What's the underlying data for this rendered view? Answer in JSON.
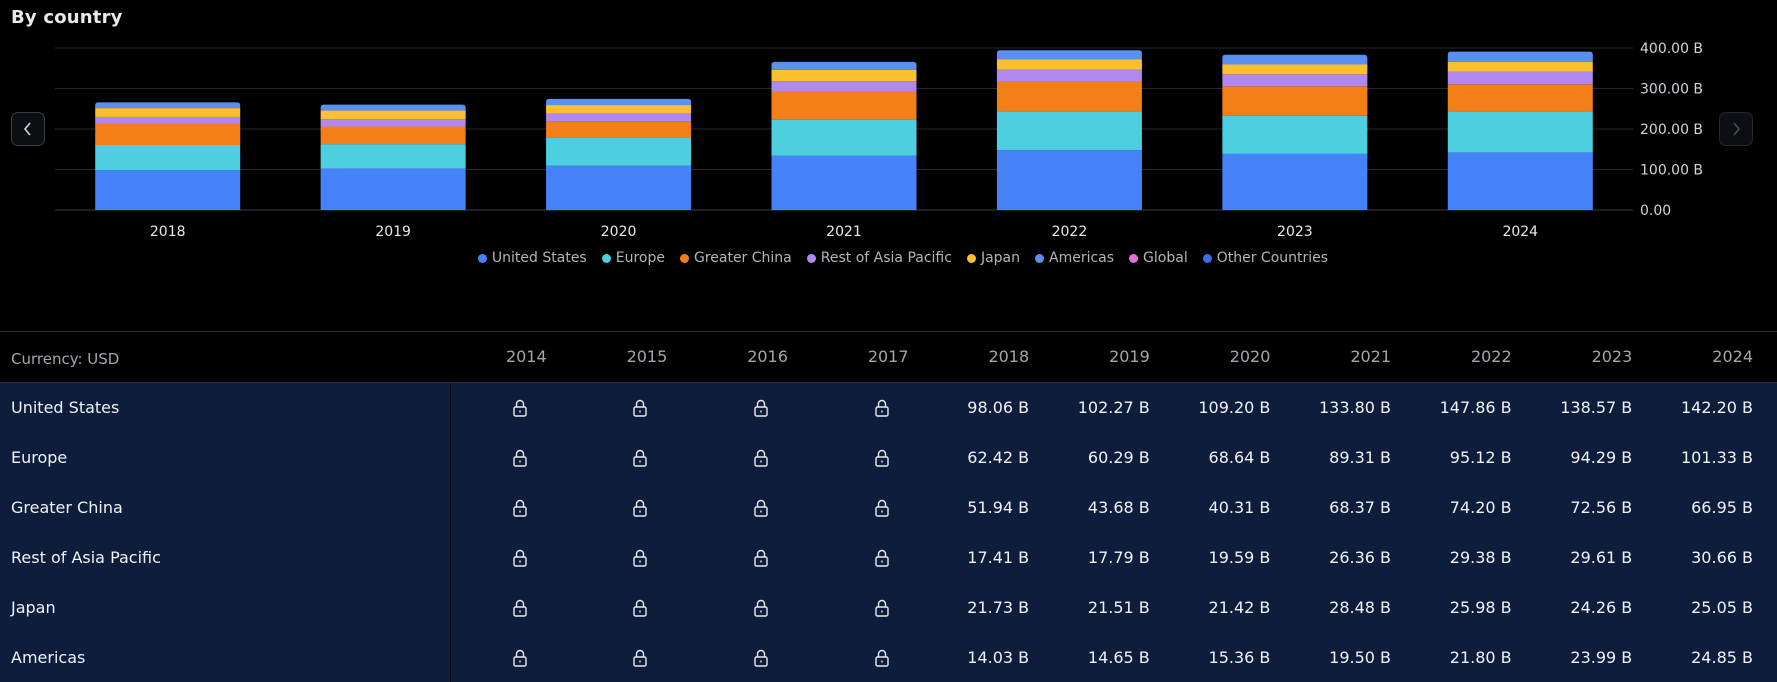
{
  "section_title": "By country",
  "chart_data": {
    "type": "bar",
    "stacked": true,
    "categories": [
      "2018",
      "2019",
      "2020",
      "2021",
      "2022",
      "2023",
      "2024"
    ],
    "series": [
      {
        "name": "United States",
        "color": "#4682fa",
        "values": [
          98.06,
          102.27,
          109.2,
          133.8,
          147.86,
          138.57,
          142.2
        ]
      },
      {
        "name": "Europe",
        "color": "#4ecfdf",
        "values": [
          62.42,
          60.29,
          68.64,
          89.31,
          95.12,
          94.29,
          101.33
        ]
      },
      {
        "name": "Greater China",
        "color": "#f57f17",
        "values": [
          51.94,
          43.68,
          40.31,
          68.37,
          74.2,
          72.56,
          66.95
        ]
      },
      {
        "name": "Rest of Asia Pacific",
        "color": "#b188f0",
        "values": [
          17.41,
          17.79,
          19.59,
          26.36,
          29.38,
          29.61,
          30.66
        ]
      },
      {
        "name": "Japan",
        "color": "#fbc02d",
        "values": [
          21.73,
          21.51,
          21.42,
          28.48,
          25.98,
          24.26,
          25.05
        ]
      },
      {
        "name": "Americas",
        "color": "#5b8ff0",
        "values": [
          14.03,
          14.65,
          15.36,
          19.5,
          21.8,
          23.99,
          24.85
        ]
      },
      {
        "name": "Global",
        "color": "#e66fe0",
        "values": [
          0,
          0,
          0,
          0,
          0,
          0,
          0
        ]
      },
      {
        "name": "Other Countries",
        "color": "#3d6ee8",
        "values": [
          0,
          0,
          0,
          0,
          0,
          0,
          0
        ]
      }
    ],
    "y_ticks": [
      "400.00 B",
      "300.00 B",
      "200.00 B",
      "100.00 B",
      "0.00"
    ],
    "y_tick_values": [
      400,
      300,
      200,
      100,
      0
    ],
    "ylim": [
      0,
      400
    ],
    "grid": true,
    "legend_position": "bottom"
  },
  "table": {
    "currency_label": "Currency: USD",
    "years": [
      "2014",
      "2015",
      "2016",
      "2017",
      "2018",
      "2019",
      "2020",
      "2021",
      "2022",
      "2023",
      "2024"
    ],
    "locked_years": [
      "2014",
      "2015",
      "2016",
      "2017"
    ],
    "rows": [
      {
        "label": "United States",
        "values": [
          "98.06 B",
          "102.27 B",
          "109.20 B",
          "133.80 B",
          "147.86 B",
          "138.57 B",
          "142.20 B"
        ]
      },
      {
        "label": "Europe",
        "values": [
          "62.42 B",
          "60.29 B",
          "68.64 B",
          "89.31 B",
          "95.12 B",
          "94.29 B",
          "101.33 B"
        ]
      },
      {
        "label": "Greater China",
        "values": [
          "51.94 B",
          "43.68 B",
          "40.31 B",
          "68.37 B",
          "74.20 B",
          "72.56 B",
          "66.95 B"
        ]
      },
      {
        "label": "Rest of Asia Pacific",
        "values": [
          "17.41 B",
          "17.79 B",
          "19.59 B",
          "26.36 B",
          "29.38 B",
          "29.61 B",
          "30.66 B"
        ]
      },
      {
        "label": "Japan",
        "values": [
          "21.73 B",
          "21.51 B",
          "21.42 B",
          "28.48 B",
          "25.98 B",
          "24.26 B",
          "25.05 B"
        ]
      },
      {
        "label": "Americas",
        "values": [
          "14.03 B",
          "14.65 B",
          "15.36 B",
          "19.50 B",
          "21.80 B",
          "23.99 B",
          "24.85 B"
        ]
      }
    ]
  }
}
